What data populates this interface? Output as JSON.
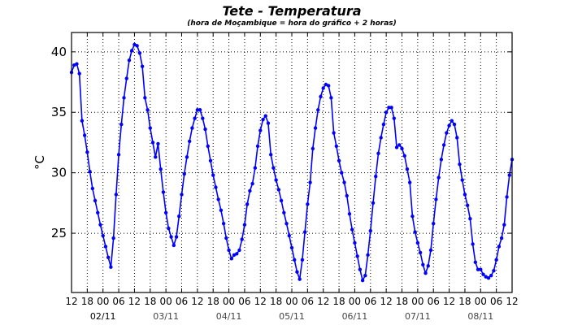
{
  "chart_data": {
    "type": "line",
    "title": "Tete - Temperatura",
    "subtitle": "(hora de Moçambique = hora do gráfico + 2 horas)",
    "xlabel": "",
    "ylabel": "°C",
    "ylim": [
      20.1,
      41.6
    ],
    "xlim_hours": [
      0,
      168
    ],
    "x_start": "01/11 12h",
    "x_step_hours": 1,
    "grid": true,
    "color": "#0000ff",
    "yticks": [
      25,
      30,
      35,
      40
    ],
    "xtick_labels": [
      "12",
      "18",
      "00",
      "06",
      "12",
      "18",
      "00",
      "06",
      "12",
      "18",
      "00",
      "06",
      "12",
      "18",
      "00",
      "06",
      "12",
      "18",
      "00",
      "06",
      "12",
      "18",
      "00",
      "06",
      "12",
      "18",
      "00",
      "06",
      "12"
    ],
    "date_labels": [
      {
        "label": "02/11",
        "hour": 12
      },
      {
        "label": "03/11",
        "hour": 36
      },
      {
        "label": "04/11",
        "hour": 60
      },
      {
        "label": "05/11",
        "hour": 84
      },
      {
        "label": "06/11",
        "hour": 108
      },
      {
        "label": "07/11",
        "hour": 132
      },
      {
        "label": "08/11",
        "hour": 156
      }
    ],
    "series": [
      {
        "name": "Temperatura",
        "values": [
          38.3,
          38.9,
          39.0,
          38.2,
          34.3,
          33.1,
          31.7,
          30.1,
          28.7,
          27.7,
          26.7,
          25.7,
          24.8,
          23.9,
          23.0,
          22.2,
          24.6,
          28.2,
          31.5,
          34.0,
          36.2,
          37.8,
          39.3,
          40.1,
          40.6,
          40.5,
          39.9,
          38.8,
          36.2,
          35.2,
          33.7,
          32.5,
          31.3,
          32.4,
          30.3,
          28.4,
          26.7,
          25.4,
          24.7,
          24.0,
          24.7,
          26.4,
          28.2,
          29.9,
          31.3,
          32.6,
          33.7,
          34.5,
          35.2,
          35.2,
          34.5,
          33.6,
          32.2,
          31.0,
          29.8,
          28.8,
          27.8,
          26.9,
          25.8,
          24.6,
          23.6,
          22.9,
          23.2,
          23.3,
          23.6,
          24.5,
          25.7,
          27.4,
          28.5,
          29.1,
          30.4,
          32.2,
          33.5,
          34.4,
          34.7,
          34.1,
          31.5,
          30.4,
          29.4,
          28.6,
          27.7,
          26.7,
          25.8,
          24.8,
          23.8,
          22.8,
          21.8,
          21.2,
          22.8,
          25.1,
          27.4,
          29.2,
          32.0,
          33.7,
          35.2,
          36.3,
          37.0,
          37.3,
          37.2,
          36.2,
          33.3,
          32.2,
          31.0,
          30.0,
          29.2,
          28.1,
          26.6,
          25.3,
          24.2,
          23.1,
          22.0,
          21.1,
          21.5,
          23.2,
          25.2,
          27.5,
          29.7,
          31.6,
          32.9,
          34.0,
          35.0,
          35.4,
          35.4,
          34.5,
          32.1,
          32.3,
          32.0,
          31.4,
          30.3,
          29.2,
          26.4,
          25.1,
          24.2,
          23.4,
          22.4,
          21.7,
          22.3,
          23.6,
          25.8,
          27.8,
          29.6,
          31.1,
          32.3,
          33.3,
          33.9,
          34.3,
          34.0,
          32.9,
          30.7,
          29.4,
          28.2,
          27.3,
          26.2,
          24.1,
          22.6,
          22.0,
          22.0,
          21.6,
          21.4,
          21.3,
          21.5,
          21.9,
          22.8,
          23.9,
          24.6,
          25.7,
          28.0,
          29.8,
          31.1
        ]
      }
    ]
  }
}
